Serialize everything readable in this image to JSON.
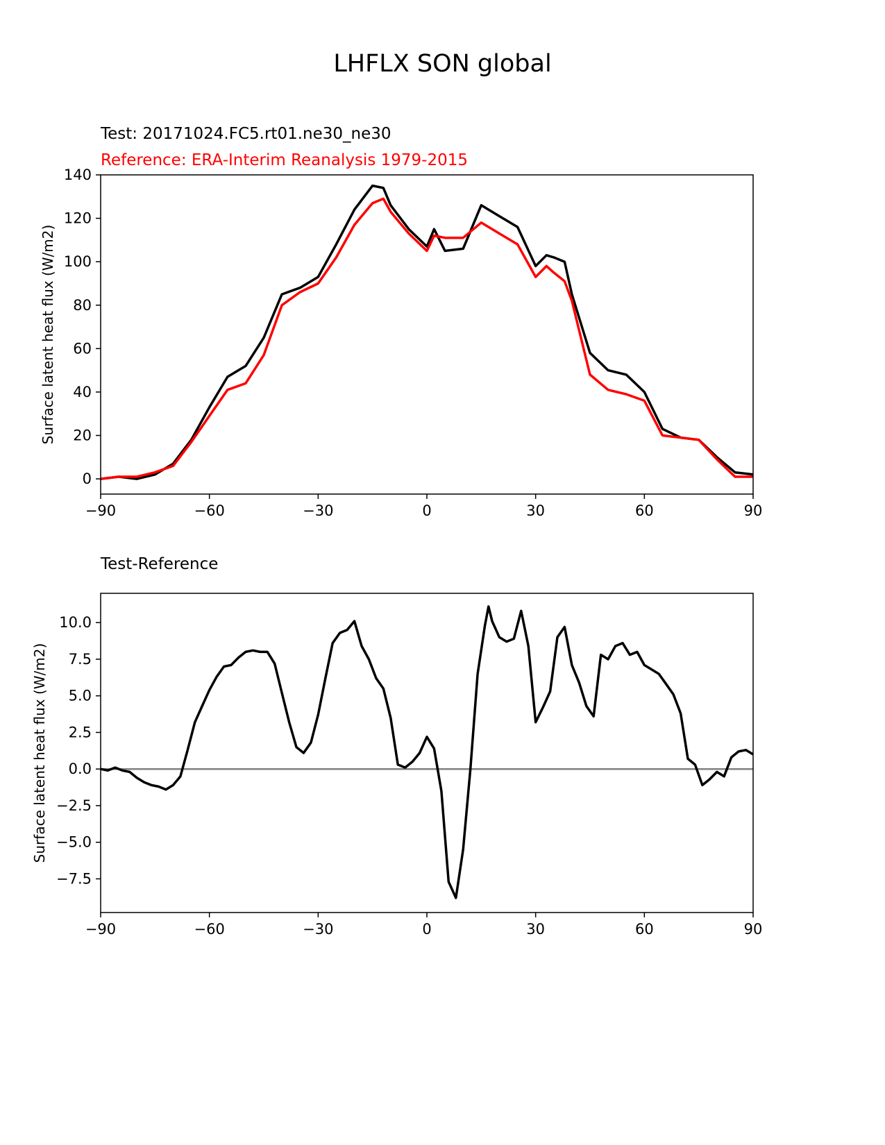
{
  "suptitle": "LHFLX SON global",
  "colors": {
    "test": "#000000",
    "reference": "#ff0000",
    "diff": "#000000",
    "zero_line": "#808080"
  },
  "chart_data": [
    {
      "type": "line",
      "title_test": "Test: 20171024.FC5.rt01.ne30_ne30",
      "title_reference": "Reference: ERA-Interim Reanalysis 1979-2015",
      "xlabel": "",
      "ylabel": "Surface latent heat flux (W/m2)",
      "xlim": [
        -90,
        90
      ],
      "ylim": [
        -7,
        140
      ],
      "xticks": [
        -90,
        -60,
        -30,
        0,
        30,
        60,
        90
      ],
      "xtick_labels": [
        "−90",
        "−60",
        "−30",
        "0",
        "30",
        "60",
        "90"
      ],
      "yticks": [
        0,
        20,
        40,
        60,
        80,
        100,
        120,
        140
      ],
      "ytick_labels": [
        "0",
        "20",
        "40",
        "60",
        "80",
        "100",
        "120",
        "140"
      ],
      "x": [
        -90,
        -85,
        -80,
        -75,
        -70,
        -65,
        -60,
        -55,
        -50,
        -45,
        -40,
        -35,
        -30,
        -25,
        -20,
        -15,
        -12,
        -10,
        -5,
        0,
        2,
        5,
        10,
        15,
        20,
        25,
        30,
        33,
        35,
        38,
        40,
        45,
        50,
        55,
        60,
        65,
        70,
        75,
        80,
        85,
        90
      ],
      "series": [
        {
          "name": "Test",
          "values": [
            0,
            1,
            0,
            2,
            7,
            18,
            33,
            47,
            52,
            65,
            85,
            88,
            93,
            108,
            124,
            135,
            134,
            126,
            115,
            107,
            115,
            105,
            106,
            126,
            121,
            116,
            98,
            103,
            102,
            100,
            85,
            58,
            50,
            48,
            40,
            23,
            19,
            18,
            10,
            3,
            2
          ]
        },
        {
          "name": "Reference",
          "values": [
            0,
            1,
            1,
            3,
            6,
            17,
            29,
            41,
            44,
            57,
            80,
            86,
            90,
            102,
            117,
            127,
            129,
            123,
            113,
            105,
            112,
            111,
            111,
            118,
            113,
            108,
            93,
            98,
            95,
            91,
            82,
            48,
            41,
            39,
            36,
            20,
            19,
            18,
            9,
            1,
            1
          ]
        }
      ]
    },
    {
      "type": "line",
      "title": "Test-Reference",
      "xlabel": "",
      "ylabel": "Surface latent heat flux (W/m2)",
      "xlim": [
        -90,
        90
      ],
      "ylim": [
        -9.8,
        12.0
      ],
      "xticks": [
        -90,
        -60,
        -30,
        0,
        30,
        60,
        90
      ],
      "xtick_labels": [
        "−90",
        "−60",
        "−30",
        "0",
        "30",
        "60",
        "90"
      ],
      "yticks": [
        -7.5,
        -5.0,
        -2.5,
        0.0,
        2.5,
        5.0,
        7.5,
        10.0
      ],
      "ytick_labels": [
        "−7.5",
        "−5.0",
        "−2.5",
        "0.0",
        "2.5",
        "5.0",
        "7.5",
        "10.0"
      ],
      "x": [
        -90,
        -88,
        -86,
        -84,
        -82,
        -80,
        -78,
        -76,
        -74,
        -72,
        -70,
        -68,
        -66,
        -64,
        -62,
        -60,
        -58,
        -56,
        -54,
        -52,
        -50,
        -48,
        -46,
        -44,
        -42,
        -40,
        -38,
        -36,
        -34,
        -32,
        -30,
        -28,
        -26,
        -24,
        -22,
        -20,
        -18,
        -16,
        -14,
        -12,
        -10,
        -8,
        -6,
        -4,
        -2,
        0,
        2,
        4,
        6,
        8,
        10,
        12,
        14,
        16,
        17,
        18,
        20,
        22,
        24,
        26,
        28,
        30,
        32,
        34,
        36,
        38,
        40,
        42,
        44,
        46,
        48,
        50,
        52,
        54,
        56,
        58,
        60,
        62,
        64,
        66,
        68,
        70,
        72,
        74,
        76,
        78,
        80,
        82,
        84,
        86,
        88,
        90
      ],
      "zero_line": 0.0,
      "series": [
        {
          "name": "Test-Reference",
          "values": [
            0.0,
            -0.1,
            0.1,
            -0.1,
            -0.2,
            -0.6,
            -0.9,
            -1.1,
            -1.2,
            -1.4,
            -1.1,
            -0.5,
            1.3,
            3.2,
            4.3,
            5.4,
            6.3,
            7.0,
            7.1,
            7.6,
            8.0,
            8.1,
            8.0,
            8.0,
            7.2,
            5.2,
            3.2,
            1.5,
            1.1,
            1.8,
            3.7,
            6.2,
            8.6,
            9.3,
            9.5,
            10.1,
            8.4,
            7.5,
            6.2,
            5.5,
            3.5,
            0.3,
            0.1,
            0.5,
            1.1,
            2.2,
            1.4,
            -1.5,
            -7.7,
            -8.8,
            -5.5,
            0.0,
            6.5,
            9.8,
            11.1,
            10.1,
            9.0,
            8.7,
            8.9,
            10.8,
            8.4,
            3.2,
            4.2,
            5.3,
            9.0,
            9.7,
            7.1,
            5.9,
            4.3,
            3.6,
            7.8,
            7.5,
            8.4,
            8.6,
            7.8,
            8.0,
            7.1,
            6.8,
            6.5,
            5.8,
            5.1,
            3.8,
            0.7,
            0.3,
            -1.1,
            -0.7,
            -0.2,
            -0.5,
            0.8,
            1.2,
            1.3,
            1.0
          ]
        }
      ]
    }
  ]
}
